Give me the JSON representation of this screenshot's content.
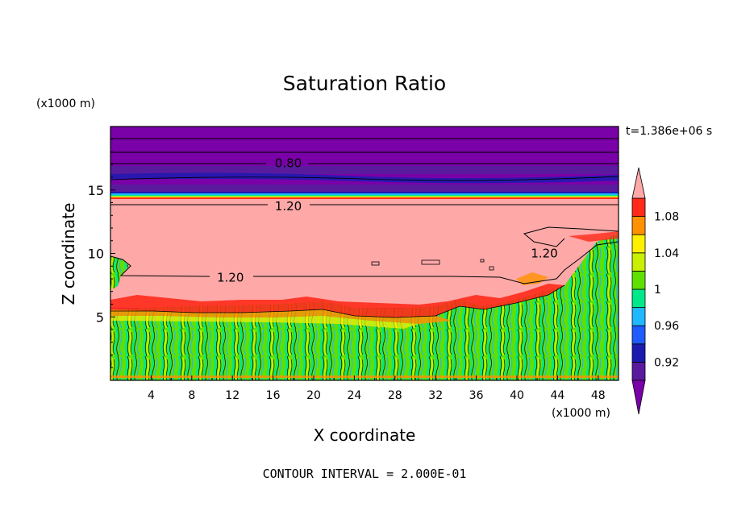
{
  "chart_data": {
    "type": "heatmap",
    "title": "Saturation Ratio",
    "xlabel": "X coordinate",
    "ylabel": "Z coordinate",
    "x_unit": "(x1000 m)",
    "y_unit": "(x1000 m)",
    "time_label": "t=1.386e+06 s",
    "footer": "CONTOUR INTERVAL = 2.000E-01",
    "xlim": [
      0,
      50
    ],
    "ylim": [
      0,
      20
    ],
    "x_ticks": [
      "4",
      "8",
      "12",
      "16",
      "20",
      "24",
      "28",
      "32",
      "36",
      "40",
      "44",
      "48"
    ],
    "x_tick_values": [
      4,
      8,
      12,
      16,
      20,
      24,
      28,
      32,
      36,
      40,
      44,
      48
    ],
    "y_ticks": [
      "5",
      "10",
      "15"
    ],
    "y_tick_values": [
      5,
      10,
      15
    ],
    "contour_labels": [
      {
        "text": "0.80",
        "x": 17.5,
        "z": 17.1
      },
      {
        "text": "1.20",
        "x": 17.5,
        "z": 13.7
      },
      {
        "text": "1.20",
        "x": 11.8,
        "z": 8.1
      },
      {
        "text": "1.20",
        "x": 42.7,
        "z": 10.0
      }
    ],
    "colorbar": {
      "levels": [
        0.9,
        0.92,
        0.94,
        0.96,
        0.98,
        1.0,
        1.02,
        1.04,
        1.06,
        1.08,
        1.1
      ],
      "tick_labels": [
        "0.92",
        "0.96",
        "1",
        "1.04",
        "1.08"
      ],
      "tick_values": [
        0.92,
        0.96,
        1.0,
        1.04,
        1.08
      ],
      "colors": [
        "#5a1a9e",
        "#1b1bb0",
        "#1f5cff",
        "#20b8ff",
        "#00e88a",
        "#5fe000",
        "#c8f000",
        "#fff000",
        "#ff9000",
        "#ff2a1a"
      ],
      "under_color": "#7a00a8",
      "over_color": "#ffa8a8"
    },
    "regions": [
      {
        "name": "upper dry layer",
        "z_range": [
          14.8,
          20
        ],
        "color": "#7a00a8"
      },
      {
        "name": "supersaturated layer",
        "z_range": [
          6,
          13.9
        ],
        "color": "#ffa8a8"
      },
      {
        "name": "turbulent boundary layer",
        "z_range": [
          0,
          6
        ],
        "color": "#5fe000"
      }
    ]
  }
}
